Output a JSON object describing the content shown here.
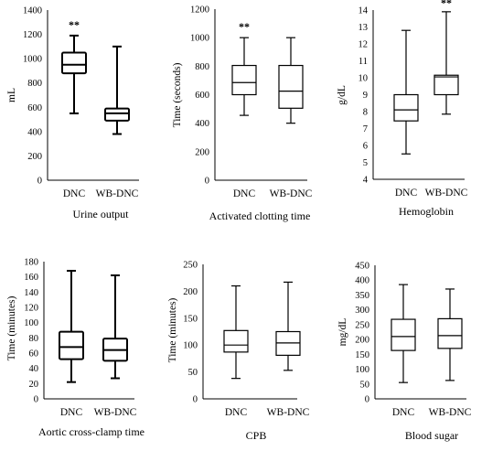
{
  "chart_data": [
    {
      "type": "box",
      "caption": "Urine output",
      "ylabel": "mL",
      "ylim": [
        0,
        1400
      ],
      "yticks": [
        0,
        200,
        400,
        600,
        800,
        1000,
        1200,
        1400
      ],
      "ytick_labels": [
        "0",
        "200",
        "400",
        "600",
        "800",
        "1000",
        "1200",
        "1400"
      ],
      "categories": [
        "DNC",
        "WB-DNC"
      ],
      "boxes": [
        {
          "min": 550,
          "q1": 880,
          "median": 950,
          "q3": 1050,
          "max": 1190,
          "bold": true,
          "annotation": "**"
        },
        {
          "min": 380,
          "q1": 490,
          "median": 550,
          "q3": 590,
          "max": 1100,
          "bold": true,
          "annotation": ""
        }
      ]
    },
    {
      "type": "box",
      "caption": "Activated clotting time",
      "ylabel": "Time (seconds)",
      "ylim": [
        0,
        1200
      ],
      "yticks": [
        0,
        200,
        400,
        600,
        800,
        1000,
        1200
      ],
      "ytick_labels": [
        "0",
        "200",
        "400",
        "600",
        "800",
        "1000",
        "1200"
      ],
      "categories": [
        "DNC",
        "WB-DNC"
      ],
      "boxes": [
        {
          "min": 455,
          "q1": 600,
          "median": 685,
          "q3": 805,
          "max": 1000,
          "bold": false,
          "annotation": "**"
        },
        {
          "min": 400,
          "q1": 505,
          "median": 625,
          "q3": 805,
          "max": 1000,
          "bold": false,
          "annotation": ""
        }
      ]
    },
    {
      "type": "box",
      "caption": "Hemoglobin",
      "ylabel": "g/dL",
      "ylim": [
        4,
        14
      ],
      "yticks": [
        4,
        5,
        6,
        7,
        8,
        9,
        10,
        11,
        12,
        13,
        14
      ],
      "ytick_labels": [
        "4",
        "5",
        "6",
        "7",
        "8",
        "9",
        "10",
        "11",
        "12",
        "13",
        "14"
      ],
      "categories": [
        "DNC",
        "WB-DNC"
      ],
      "boxes": [
        {
          "min": 5.5,
          "q1": 7.45,
          "median": 8.1,
          "q3": 9.0,
          "max": 12.8,
          "bold": false,
          "annotation": ""
        },
        {
          "min": 7.85,
          "q1": 9.0,
          "median": 10.05,
          "q3": 10.15,
          "max": 13.9,
          "bold": false,
          "annotation": "**"
        }
      ]
    },
    {
      "type": "box",
      "caption": "Aortic cross-clamp time",
      "ylabel": "Time (minutes)",
      "ylim": [
        0,
        180
      ],
      "yticks": [
        0,
        20,
        40,
        60,
        80,
        100,
        120,
        140,
        160,
        180
      ],
      "ytick_labels": [
        "0",
        "20",
        "40",
        "60",
        "80",
        "100",
        "120",
        "140",
        "160",
        "180"
      ],
      "categories": [
        "DNC",
        "WB-DNC"
      ],
      "boxes": [
        {
          "min": 22,
          "q1": 52,
          "median": 68,
          "q3": 88,
          "max": 168,
          "bold": true,
          "annotation": ""
        },
        {
          "min": 27,
          "q1": 50,
          "median": 64,
          "q3": 79,
          "max": 162,
          "bold": true,
          "annotation": ""
        }
      ]
    },
    {
      "type": "box",
      "caption": "CPB",
      "ylabel": "Time (minutes)",
      "ylim": [
        0,
        250
      ],
      "yticks": [
        0,
        50,
        100,
        150,
        200,
        250
      ],
      "ytick_labels": [
        "0",
        "50",
        "100",
        "150",
        "200",
        "250"
      ],
      "categories": [
        "DNC",
        "WB-DNC"
      ],
      "boxes": [
        {
          "min": 38,
          "q1": 87,
          "median": 100,
          "q3": 127,
          "max": 210,
          "bold": false,
          "annotation": ""
        },
        {
          "min": 53,
          "q1": 81,
          "median": 104,
          "q3": 125,
          "max": 217,
          "bold": false,
          "annotation": ""
        }
      ]
    },
    {
      "type": "box",
      "caption": "Blood sugar",
      "ylabel": "mg/dL",
      "ylim": [
        0,
        450
      ],
      "yticks": [
        0,
        50,
        100,
        150,
        200,
        250,
        300,
        350,
        400,
        450
      ],
      "ytick_labels": [
        "0",
        "50",
        "100",
        "150",
        "200",
        "250",
        "300",
        "350",
        "400",
        "450"
      ],
      "categories": [
        "DNC",
        "WB-DNC"
      ],
      "boxes": [
        {
          "min": 55,
          "q1": 163,
          "median": 210,
          "q3": 268,
          "max": 385,
          "bold": false,
          "annotation": ""
        },
        {
          "min": 62,
          "q1": 170,
          "median": 213,
          "q3": 270,
          "max": 370,
          "bold": false,
          "annotation": ""
        }
      ]
    }
  ]
}
